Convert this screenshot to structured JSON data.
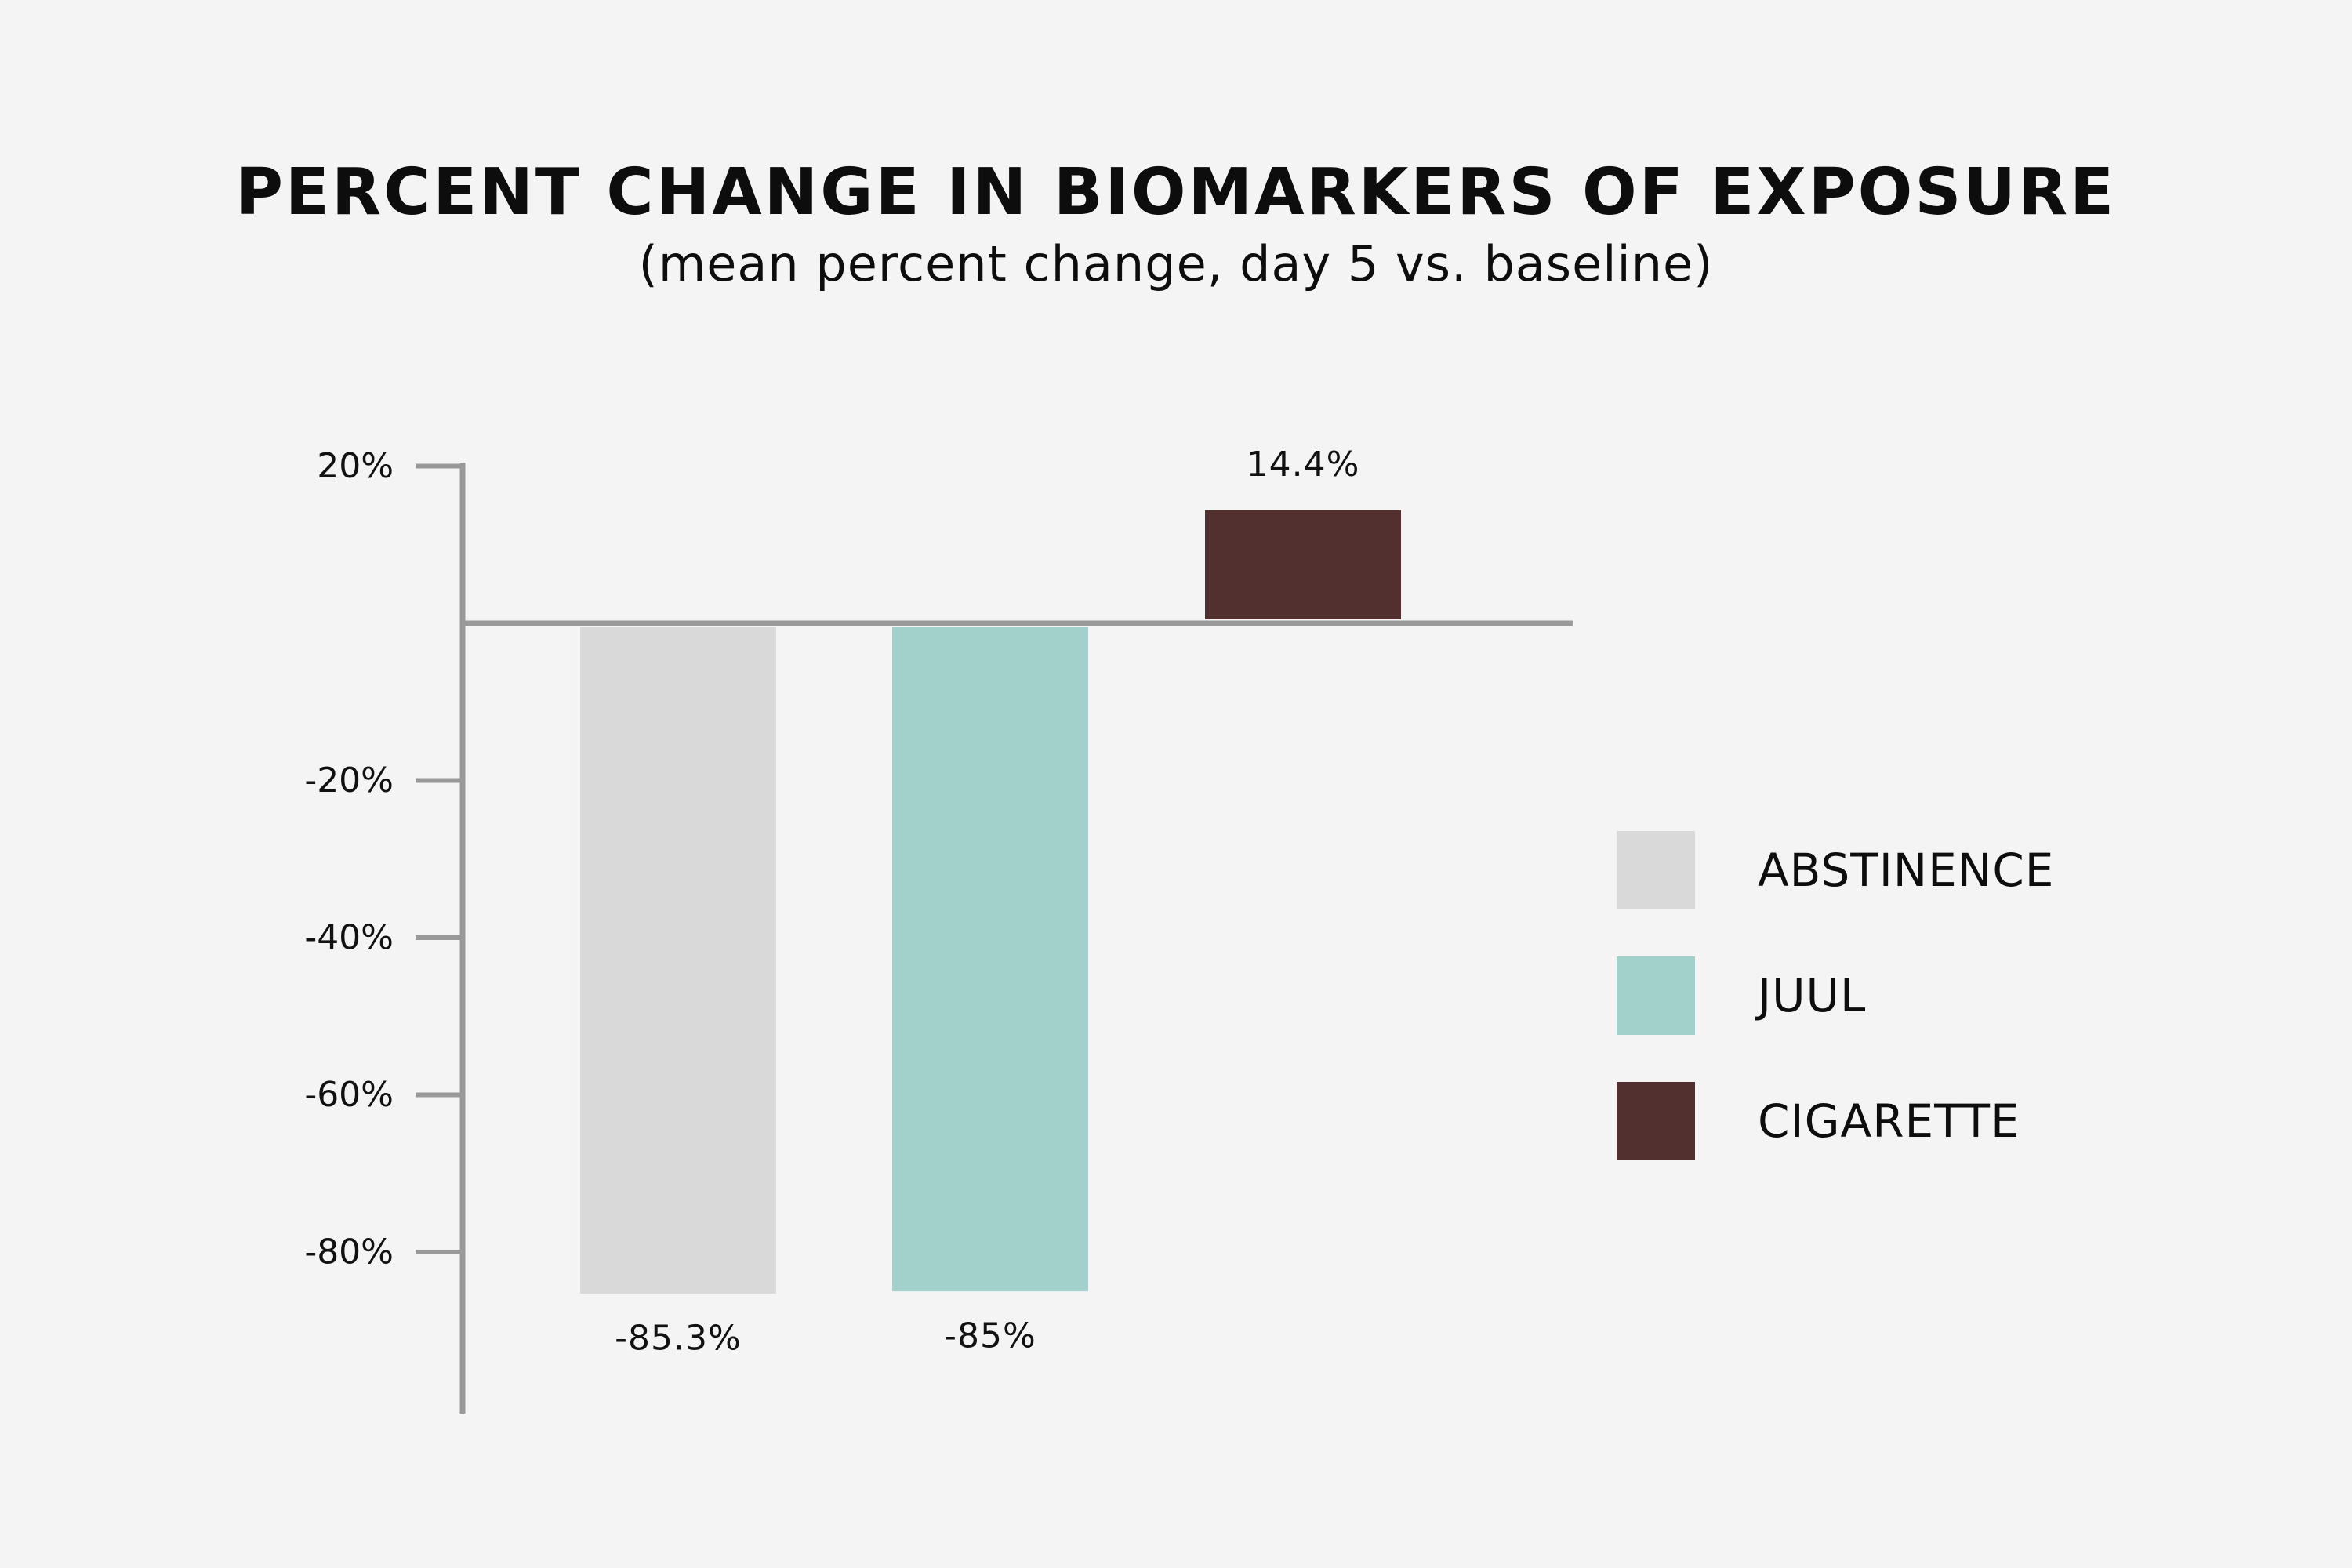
{
  "chart_data": {
    "type": "bar",
    "title": "PERCENT CHANGE IN BIOMARKERS OF EXPOSURE",
    "subtitle": "(mean percent change, day 5 vs. baseline)",
    "categories": [
      "ABSTINENCE",
      "JUUL",
      "CIGARETTE"
    ],
    "values": [
      -85.3,
      -85,
      14.4
    ],
    "data_labels": [
      "-85.3%",
      "-85%",
      "14.4%"
    ],
    "colors": [
      "#d9d9d9",
      "#a2d1cb",
      "#52302f"
    ],
    "xlabel": "",
    "ylabel": "",
    "ylim": [
      -100,
      20
    ],
    "yticks": [
      20,
      -20,
      -40,
      -60,
      -80
    ],
    "ytick_labels": [
      "20%",
      "-20%",
      "-40%",
      "-60%",
      "-80%"
    ],
    "grid": false,
    "legend_position": "right"
  },
  "legend": {
    "items": [
      {
        "label": "ABSTINENCE",
        "color": "#d9d9d9"
      },
      {
        "label": "JUUL",
        "color": "#a2d1cb"
      },
      {
        "label": "CIGARETTE",
        "color": "#52302f"
      }
    ]
  },
  "axis_color": "#999999"
}
